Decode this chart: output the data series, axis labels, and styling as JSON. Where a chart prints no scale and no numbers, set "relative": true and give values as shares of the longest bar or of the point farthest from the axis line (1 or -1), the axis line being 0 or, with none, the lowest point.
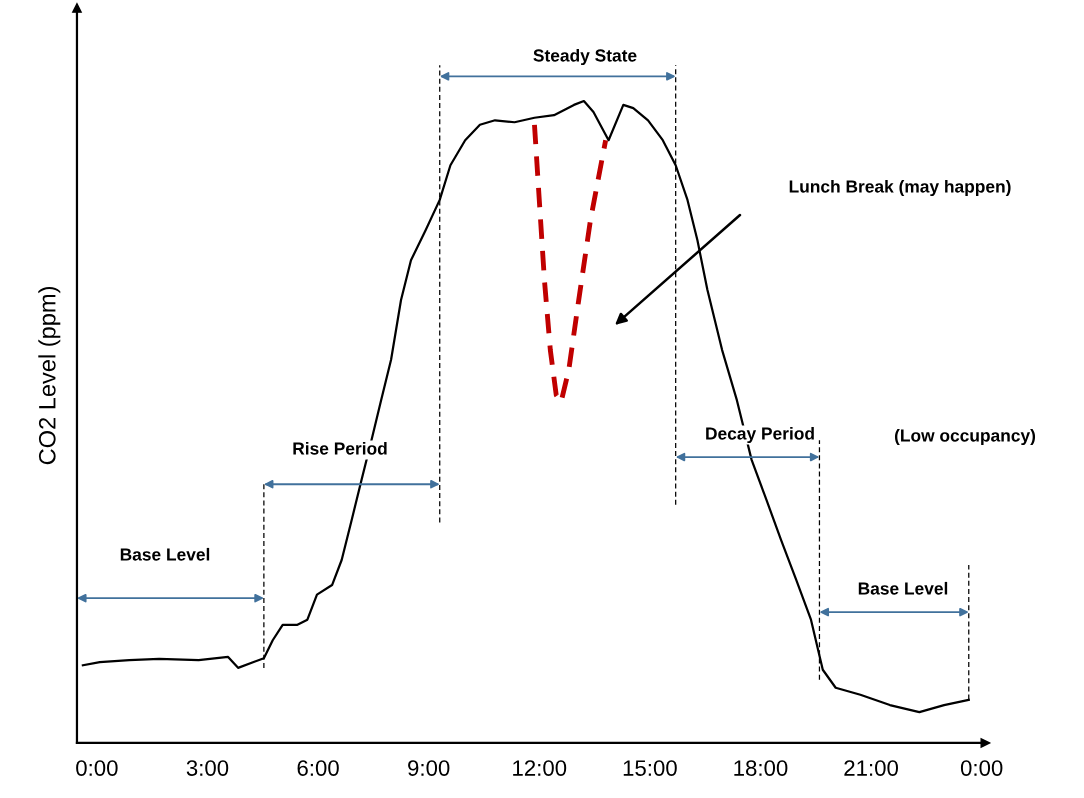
{
  "chart_data": {
    "type": "line",
    "relative": true,
    "ylabel": "CO2 Level (ppm)",
    "xlim": [
      -0.54,
      24.1
    ],
    "xticks": [
      {
        "value": 0,
        "label": "0:00"
      },
      {
        "value": 3,
        "label": "3:00"
      },
      {
        "value": 6,
        "label": "6:00"
      },
      {
        "value": 9,
        "label": "9:00"
      },
      {
        "value": 12,
        "label": "12:00"
      },
      {
        "value": 15,
        "label": "15:00"
      },
      {
        "value": 18,
        "label": "18:00"
      },
      {
        "value": 21,
        "label": "21:00"
      },
      {
        "value": 24,
        "label": "0:00"
      }
    ],
    "tick_labels": "x",
    "grid": false,
    "legend": false,
    "marker": "none",
    "series": [
      {
        "color": "#000000",
        "line_style": "solid",
        "x": [
          -0.38,
          0.08,
          0.88,
          1.69,
          2.76,
          3.56,
          3.83,
          4.53,
          4.77,
          5.04,
          5.44,
          5.71,
          5.97,
          6.38,
          6.64,
          6.91,
          7.18,
          7.45,
          7.71,
          7.98,
          8.25,
          8.52,
          8.92,
          9.3,
          9.59,
          9.99,
          10.39,
          10.8,
          11.33,
          11.87,
          12.4,
          12.94,
          13.21,
          13.47,
          13.88,
          14.28,
          14.55,
          14.95,
          15.35,
          15.7,
          16.02,
          16.29,
          16.56,
          16.96,
          17.36,
          17.76,
          18.16,
          18.56,
          18.97,
          19.37,
          19.69,
          20.04,
          20.71,
          21.51,
          22.31,
          22.98,
          23.65
        ],
        "values": [
          0.121,
          0.126,
          0.129,
          0.131,
          0.129,
          0.134,
          0.117,
          0.132,
          0.16,
          0.184,
          0.184,
          0.192,
          0.231,
          0.246,
          0.285,
          0.347,
          0.41,
          0.472,
          0.534,
          0.597,
          0.69,
          0.752,
          0.799,
          0.846,
          0.9,
          0.939,
          0.963,
          0.97,
          0.967,
          0.974,
          0.978,
          0.994,
          1,
          0.983,
          0.939,
          0.994,
          0.989,
          0.97,
          0.939,
          0.9,
          0.846,
          0.783,
          0.706,
          0.612,
          0.534,
          0.441,
          0.379,
          0.316,
          0.254,
          0.192,
          0.114,
          0.086,
          0.075,
          0.059,
          0.048,
          0.059,
          0.067
        ]
      },
      {
        "color": "#c00000",
        "line_style": "dashed",
        "x": [
          11.87,
          12.0,
          12.14,
          12.3,
          12.46,
          12.59,
          12.8,
          13.07,
          13.39,
          13.8
        ],
        "values": [
          0.963,
          0.846,
          0.721,
          0.612,
          0.542,
          0.531,
          0.581,
          0.69,
          0.815,
          0.939
        ]
      }
    ],
    "ref_lines": [
      {
        "axis": "x",
        "value": 4.53,
        "color": "#000000",
        "line_style": "dashed"
      },
      {
        "axis": "x",
        "value": 9.3,
        "color": "#000000",
        "line_style": "dashed"
      },
      {
        "axis": "x",
        "value": 15.7,
        "color": "#000000",
        "line_style": "dashed"
      },
      {
        "axis": "x",
        "value": 19.6,
        "color": "#000000",
        "line_style": "dashed"
      },
      {
        "axis": "x",
        "value": 23.65,
        "color": "#000000",
        "line_style": "dashed"
      }
    ],
    "annotations": [
      "Base Level",
      "Rise Period",
      "Steady State",
      "Decay Period",
      "Base Level",
      "Lunch Break (may happen)",
      "(Low occupancy)"
    ]
  }
}
